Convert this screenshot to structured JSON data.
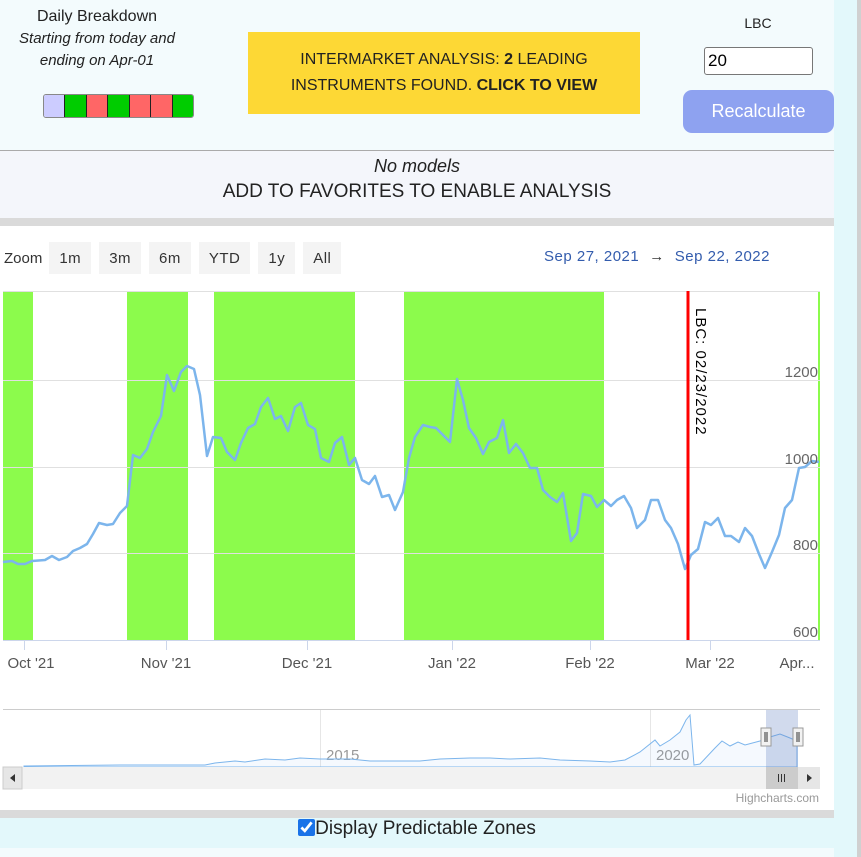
{
  "breakdown": {
    "title": "Daily Breakdown",
    "subtitle_line1": "Starting from today and",
    "subtitle_line2": "ending on Apr-01",
    "days": [
      "#ccccff",
      "#00cc00",
      "#ff6666",
      "#00cc00",
      "#ff6666",
      "#ff6666",
      "#00cc00"
    ]
  },
  "banner": {
    "part1": "INTERMARKET ANALYSIS: ",
    "count": "2",
    "part2": " LEADING",
    "part3": "INSTRUMENTS FOUND. ",
    "cta": "CLICK TO VIEW",
    "color": "#fdd835"
  },
  "lbc": {
    "label": "LBC",
    "value": "20",
    "button": "Recalculate"
  },
  "models": {
    "status": "No models",
    "message": "ADD TO FAVORITES TO ENABLE ANALYSIS"
  },
  "zoom": {
    "label": "Zoom",
    "buttons": [
      "1m",
      "3m",
      "6m",
      "YTD",
      "1y",
      "All"
    ]
  },
  "range": {
    "from": "Sep 27, 2021",
    "arrow": "→",
    "to": "Sep 22, 2022"
  },
  "navigator": {
    "labels": [
      "2015",
      "2020"
    ],
    "credit": "Highcharts.com"
  },
  "zones_toggle": {
    "label": "Display Predictable Zones",
    "checked": true
  },
  "chart_data": {
    "type": "line",
    "title": "",
    "xlabel": "",
    "ylabel": "",
    "x_tick_labels": [
      "Oct '21",
      "Nov '21",
      "Dec '21",
      "Jan '22",
      "Feb '22",
      "Mar '22",
      "Apr..."
    ],
    "y_tick_labels": [
      "600",
      "800",
      "1000",
      "1200"
    ],
    "ylim": [
      600,
      1400
    ],
    "grid": true,
    "line_color": "#7cb5ec",
    "zone_color": "#8cfb4c",
    "annotation": {
      "label": "LBC: 02/23/2022",
      "color": "#ff0000"
    },
    "predictable_zones": [
      {
        "from": "2021-09-27",
        "to": "2021-10-05"
      },
      {
        "from": "2021-10-25",
        "to": "2021-11-08"
      },
      {
        "from": "2021-11-14",
        "to": "2021-12-15"
      },
      {
        "from": "2021-12-26",
        "to": "2022-02-05"
      }
    ],
    "series": [
      {
        "name": "Price",
        "x": [
          "2021-09-27",
          "2021-10-01",
          "2021-10-06",
          "2021-10-11",
          "2021-10-15",
          "2021-10-20",
          "2021-10-25",
          "2021-10-28",
          "2021-11-01",
          "2021-11-03",
          "2021-11-05",
          "2021-11-08",
          "2021-11-11",
          "2021-11-15",
          "2021-11-19",
          "2021-11-23",
          "2021-11-26",
          "2021-12-01",
          "2021-12-05",
          "2021-12-09",
          "2021-12-13",
          "2021-12-17",
          "2021-12-21",
          "2021-12-25",
          "2021-12-29",
          "2022-01-02",
          "2022-01-06",
          "2022-01-11",
          "2022-01-15",
          "2022-01-20",
          "2022-01-24",
          "2022-01-28",
          "2022-02-01",
          "2022-02-05",
          "2022-02-10",
          "2022-02-15",
          "2022-02-19",
          "2022-02-23",
          "2022-02-28",
          "2022-03-05",
          "2022-03-10",
          "2022-03-15",
          "2022-03-20",
          "2022-03-25",
          "2022-03-30"
        ],
        "values": [
          780,
          775,
          780,
          790,
          815,
          855,
          895,
          1040,
          1120,
          1205,
          1200,
          990,
          1070,
          1090,
          1140,
          1130,
          1085,
          1010,
          1050,
          975,
          950,
          905,
          1000,
          1080,
          1070,
          1045,
          1195,
          1075,
          1055,
          1000,
          970,
          825,
          930,
          915,
          925,
          900,
          935,
          760,
          860,
          865,
          850,
          850,
          760,
          905,
          1000
        ]
      }
    ]
  }
}
